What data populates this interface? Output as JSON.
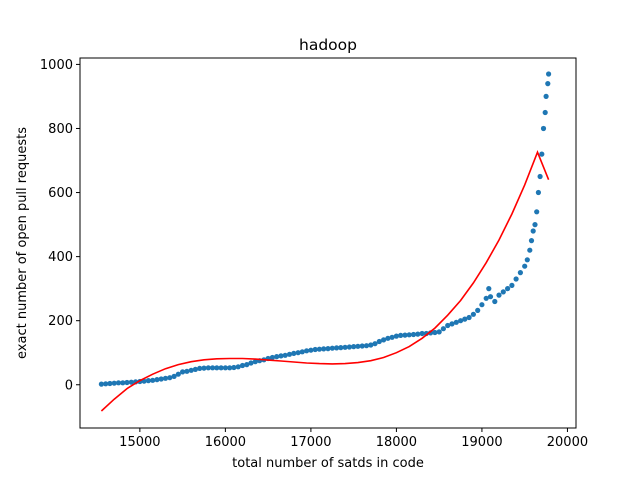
{
  "chart_data": {
    "type": "scatter",
    "title": "hadoop",
    "xlabel": "total number of satds in code",
    "ylabel": "exact number of open pull requests",
    "xlim": [
      14300,
      20100
    ],
    "ylim": [
      -135,
      1020
    ],
    "xticks": [
      15000,
      16000,
      17000,
      18000,
      19000,
      20000
    ],
    "xtick_labels": [
      "15000",
      "16000",
      "17000",
      "18000",
      "19000",
      "20000"
    ],
    "yticks": [
      0,
      200,
      400,
      600,
      800,
      1000
    ],
    "ytick_labels": [
      "0",
      "200",
      "400",
      "600",
      "800",
      "1000"
    ],
    "grid": false,
    "series": [
      {
        "kind": "scatter",
        "color": "#1f77b4",
        "points": [
          [
            14550,
            2
          ],
          [
            14600,
            3
          ],
          [
            14650,
            4
          ],
          [
            14700,
            5
          ],
          [
            14750,
            6
          ],
          [
            14800,
            6
          ],
          [
            14850,
            7
          ],
          [
            14900,
            8
          ],
          [
            14950,
            9
          ],
          [
            15000,
            10
          ],
          [
            15050,
            11
          ],
          [
            15100,
            13
          ],
          [
            15150,
            14
          ],
          [
            15200,
            16
          ],
          [
            15250,
            18
          ],
          [
            15300,
            20
          ],
          [
            15350,
            22
          ],
          [
            15400,
            26
          ],
          [
            15450,
            33
          ],
          [
            15500,
            40
          ],
          [
            15550,
            42
          ],
          [
            15600,
            45
          ],
          [
            15650,
            48
          ],
          [
            15700,
            51
          ],
          [
            15750,
            52
          ],
          [
            15800,
            53
          ],
          [
            15850,
            53
          ],
          [
            15900,
            53
          ],
          [
            15950,
            53
          ],
          [
            16000,
            53
          ],
          [
            16050,
            53
          ],
          [
            16100,
            54
          ],
          [
            16150,
            56
          ],
          [
            16200,
            60
          ],
          [
            16250,
            63
          ],
          [
            16300,
            68
          ],
          [
            16350,
            72
          ],
          [
            16400,
            75
          ],
          [
            16450,
            78
          ],
          [
            16500,
            82
          ],
          [
            16550,
            85
          ],
          [
            16600,
            88
          ],
          [
            16650,
            90
          ],
          [
            16700,
            92
          ],
          [
            16750,
            95
          ],
          [
            16800,
            98
          ],
          [
            16850,
            100
          ],
          [
            16900,
            103
          ],
          [
            16950,
            106
          ],
          [
            17000,
            108
          ],
          [
            17050,
            110
          ],
          [
            17100,
            111
          ],
          [
            17150,
            112
          ],
          [
            17200,
            113
          ],
          [
            17250,
            114
          ],
          [
            17300,
            115
          ],
          [
            17350,
            116
          ],
          [
            17400,
            117
          ],
          [
            17450,
            118
          ],
          [
            17500,
            119
          ],
          [
            17550,
            120
          ],
          [
            17600,
            121
          ],
          [
            17650,
            122
          ],
          [
            17700,
            124
          ],
          [
            17750,
            128
          ],
          [
            17800,
            135
          ],
          [
            17850,
            140
          ],
          [
            17900,
            145
          ],
          [
            17950,
            148
          ],
          [
            18000,
            152
          ],
          [
            18050,
            154
          ],
          [
            18100,
            155
          ],
          [
            18150,
            156
          ],
          [
            18200,
            157
          ],
          [
            18250,
            158
          ],
          [
            18300,
            160
          ],
          [
            18350,
            160
          ],
          [
            18400,
            162
          ],
          [
            18450,
            163
          ],
          [
            18500,
            165
          ],
          [
            18550,
            175
          ],
          [
            18600,
            185
          ],
          [
            18650,
            190
          ],
          [
            18700,
            195
          ],
          [
            18750,
            200
          ],
          [
            18800,
            205
          ],
          [
            18850,
            210
          ],
          [
            18900,
            220
          ],
          [
            18950,
            232
          ],
          [
            19000,
            250
          ],
          [
            19050,
            270
          ],
          [
            19080,
            300
          ],
          [
            19100,
            275
          ],
          [
            19150,
            260
          ],
          [
            19200,
            280
          ],
          [
            19250,
            290
          ],
          [
            19300,
            300
          ],
          [
            19350,
            310
          ],
          [
            19400,
            330
          ],
          [
            19450,
            350
          ],
          [
            19500,
            370
          ],
          [
            19530,
            390
          ],
          [
            19560,
            420
          ],
          [
            19580,
            450
          ],
          [
            19600,
            480
          ],
          [
            19620,
            500
          ],
          [
            19640,
            540
          ],
          [
            19660,
            600
          ],
          [
            19680,
            650
          ],
          [
            19700,
            720
          ],
          [
            19720,
            800
          ],
          [
            19740,
            850
          ],
          [
            19750,
            900
          ],
          [
            19770,
            940
          ],
          [
            19780,
            970
          ]
        ]
      },
      {
        "kind": "line",
        "color": "#ff0000",
        "points": [
          [
            14550,
            -82
          ],
          [
            14700,
            -45
          ],
          [
            14850,
            -12
          ],
          [
            15000,
            13
          ],
          [
            15150,
            33
          ],
          [
            15300,
            50
          ],
          [
            15450,
            63
          ],
          [
            15600,
            72
          ],
          [
            15750,
            78
          ],
          [
            15900,
            81
          ],
          [
            16050,
            82
          ],
          [
            16200,
            82
          ],
          [
            16350,
            80
          ],
          [
            16500,
            77
          ],
          [
            16650,
            74
          ],
          [
            16800,
            71
          ],
          [
            16950,
            68
          ],
          [
            17100,
            66
          ],
          [
            17250,
            65
          ],
          [
            17400,
            66
          ],
          [
            17550,
            69
          ],
          [
            17700,
            75
          ],
          [
            17850,
            85
          ],
          [
            18000,
            100
          ],
          [
            18150,
            119
          ],
          [
            18300,
            145
          ],
          [
            18450,
            177
          ],
          [
            18600,
            217
          ],
          [
            18750,
            263
          ],
          [
            18900,
            318
          ],
          [
            19050,
            381
          ],
          [
            19200,
            452
          ],
          [
            19350,
            533
          ],
          [
            19500,
            624
          ],
          [
            19650,
            726
          ],
          [
            19780,
            640
          ]
        ]
      }
    ]
  }
}
